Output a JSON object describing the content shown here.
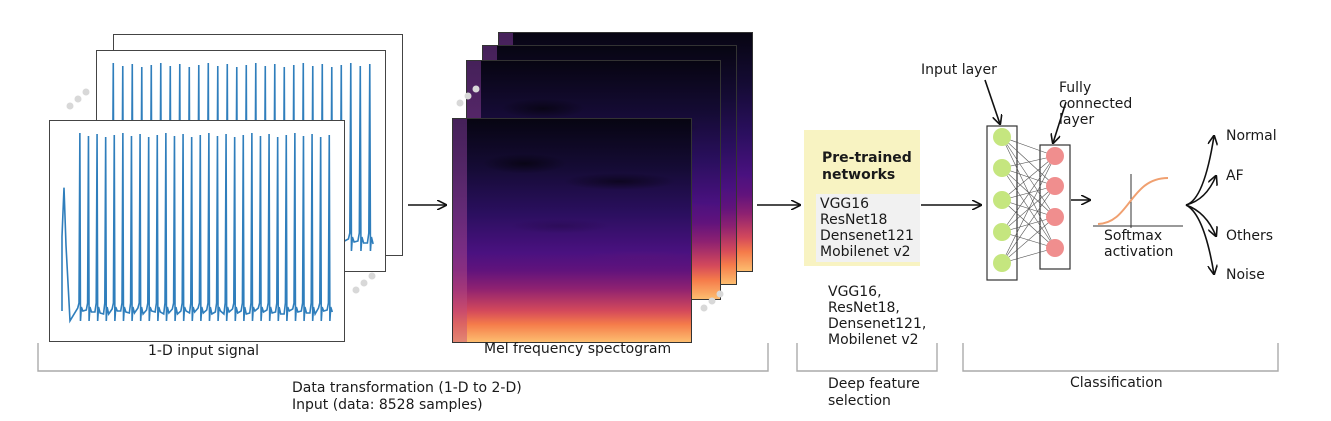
{
  "labels": {
    "input_signal": "1-D input signal",
    "spectrogram": "Mel frequency spectogram",
    "data_transformation_line1": "Data transformation (1-D to 2-D)",
    "data_transformation_line2": "Input (data: 8528 samples)",
    "pretrained_title": "Pre-trained networks",
    "deep_feature_line1": "Deep feature",
    "deep_feature_line2": "selection",
    "classification": "Classification",
    "input_layer": "Input layer",
    "fully_connected_1": "Fully",
    "fully_connected_2": "connected",
    "fully_connected_3": "layer",
    "softmax_1": "Softmax",
    "softmax_2": "activation"
  },
  "networks_box": [
    "VGG16",
    "ResNet18",
    "Densenet121",
    "Mobilenet v2"
  ],
  "networks_below": [
    "VGG16,",
    "ResNet18,",
    "Densenet121,",
    "Mobilenet v2"
  ],
  "outputs": [
    "Normal",
    "AF",
    "Others",
    "Noise"
  ],
  "colors": {
    "signal": "#2f7ebc",
    "input_node": "#c5e67f",
    "fc_node": "#f08e8e",
    "sigmoid": "#f0a070",
    "pretrained_bg": "#f8f3c2"
  }
}
